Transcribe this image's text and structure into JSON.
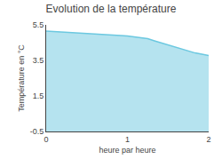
{
  "chart_data": {
    "type": "area",
    "title": "Evolution de la température",
    "xlabel": "heure par heure",
    "ylabel": "Température en °C",
    "x": [
      0.0,
      0.083,
      0.167,
      0.25,
      0.333,
      0.417,
      0.5,
      0.583,
      0.667,
      0.75,
      0.833,
      0.917,
      1.0,
      1.083,
      1.167,
      1.25,
      1.333,
      1.417,
      1.5,
      1.583,
      1.667,
      1.75,
      1.833,
      1.917,
      2.0
    ],
    "values": [
      5.15,
      5.13,
      5.11,
      5.09,
      5.07,
      5.05,
      5.03,
      5.01,
      4.99,
      4.96,
      4.93,
      4.9,
      4.87,
      4.82,
      4.77,
      4.72,
      4.6,
      4.48,
      4.36,
      4.24,
      4.12,
      4.02,
      3.92,
      3.85,
      3.78
    ],
    "color": "#6cc8e0",
    "xlim": [
      0,
      2
    ],
    "xticks": [
      0,
      1,
      2
    ],
    "ylim": [
      -0.5,
      5.5
    ],
    "yticks": [
      -0.5,
      1.5,
      3.5,
      5.5
    ],
    "grid": false
  }
}
